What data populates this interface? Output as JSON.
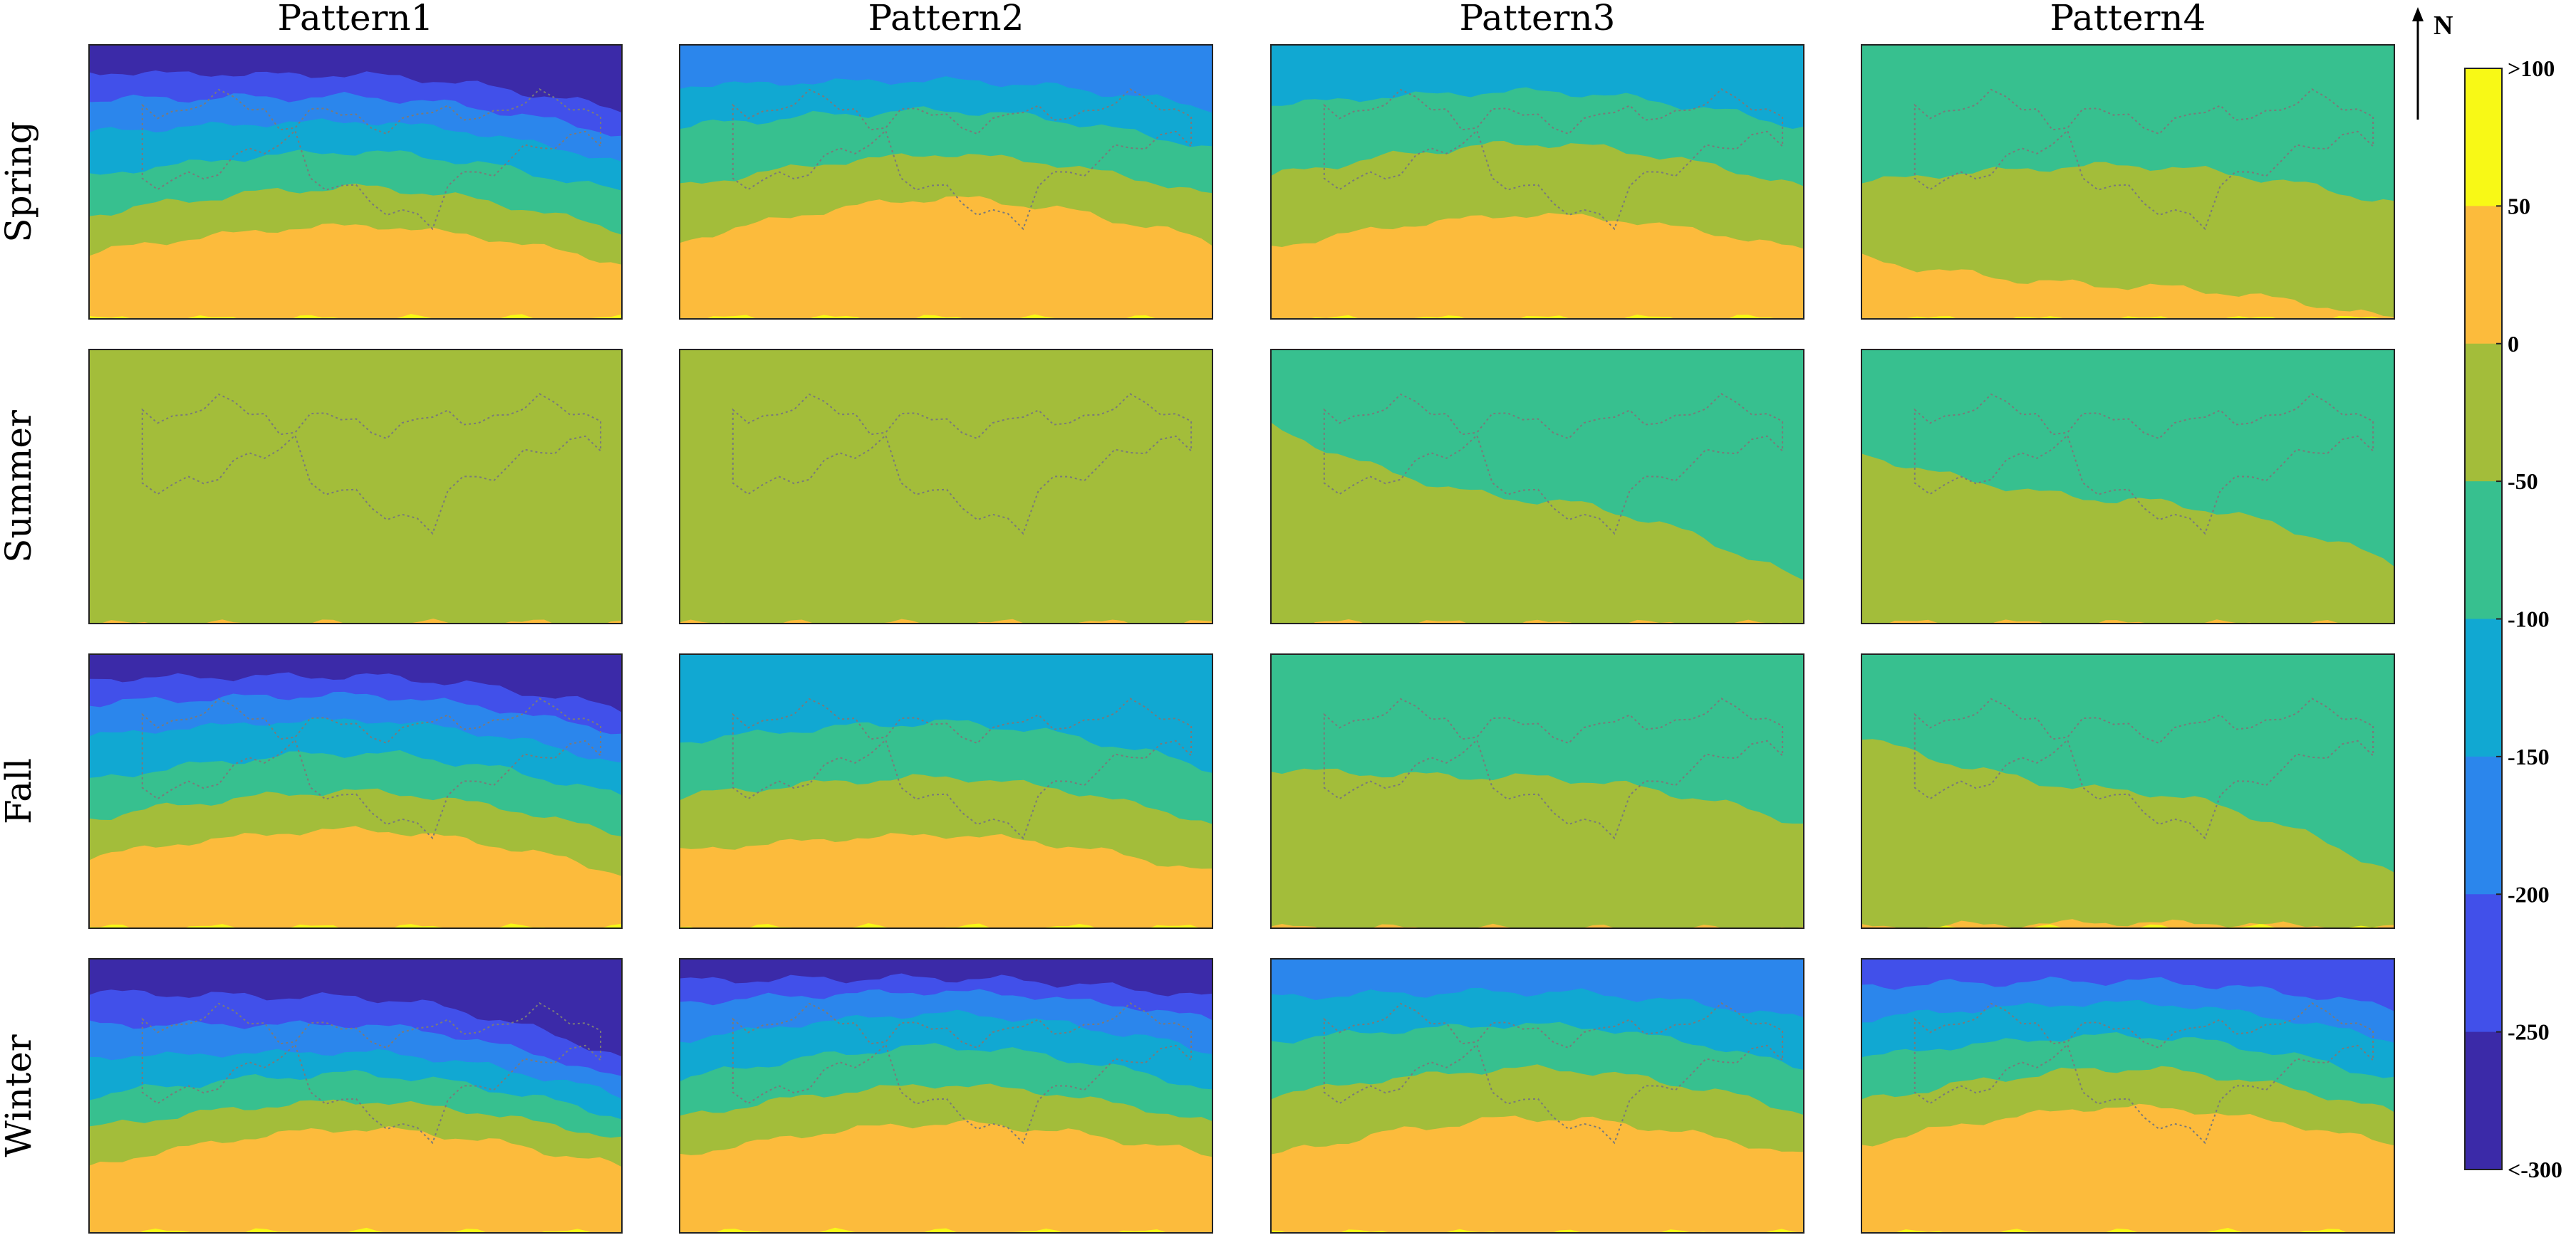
{
  "chart_data": {
    "type": "heatmap",
    "columns": [
      "Pattern1",
      "Pattern2",
      "Pattern3",
      "Pattern4"
    ],
    "rows": [
      "Spring",
      "Summer",
      "Fall",
      "Winter"
    ],
    "colorbar": {
      "levels": [
        ">100",
        "50",
        "0",
        "-50",
        "-100",
        "-150",
        "-200",
        "-250",
        "<-300"
      ],
      "colors": [
        "#f8f916",
        "#fcbb3c",
        "#a3bd3a",
        "#37c08f",
        "#11a8d2",
        "#2b86ec",
        "#4150ea",
        "#3b2aa8"
      ]
    },
    "north_label": "N",
    "panels": [
      [
        {
          "bands": [
            [
              -300,
              -250
            ],
            [
              -250,
              -200
            ],
            [
              -200,
              -150
            ],
            [
              -150,
              -100
            ],
            [
              -100,
              -50
            ],
            [
              -50,
              0
            ],
            [
              0,
              50
            ],
            [
              50,
              100
            ]
          ],
          "stops": [
            [
              0,
              0.03,
              0.16
            ],
            [
              0.1,
              0.11,
              0.24
            ],
            [
              0.2,
              0.19,
              0.33
            ],
            [
              0.32,
              0.28,
              0.43
            ],
            [
              0.48,
              0.39,
              0.54
            ],
            [
              0.62,
              0.52,
              0.68
            ],
            [
              0.76,
              0.66,
              0.8
            ],
            [
              1,
              1,
              1
            ]
          ]
        },
        {
          "bands": [
            [
              -200,
              -150
            ],
            [
              -150,
              -100
            ],
            [
              -100,
              -50
            ],
            [
              -50,
              0
            ],
            [
              0,
              50
            ],
            [
              50,
              100
            ]
          ],
          "stops": [
            [
              0,
              0.04,
              0.12
            ],
            [
              0.15,
              0.13,
              0.23
            ],
            [
              0.3,
              0.24,
              0.38
            ],
            [
              0.52,
              0.4,
              0.55
            ],
            [
              0.72,
              0.56,
              0.72
            ],
            [
              1,
              1,
              1
            ]
          ]
        },
        {
          "bands": [
            [
              -150,
              -100
            ],
            [
              -100,
              -50
            ],
            [
              -50,
              0
            ],
            [
              0,
              50
            ],
            [
              50,
              100
            ]
          ],
          "stops": [
            [
              0,
              0.03,
              0.12
            ],
            [
              0.22,
              0.17,
              0.3
            ],
            [
              0.48,
              0.36,
              0.52
            ],
            [
              0.74,
              0.62,
              0.75
            ],
            [
              1,
              1,
              1
            ]
          ]
        },
        {
          "bands": [
            [
              -100,
              -50
            ],
            [
              -50,
              0
            ],
            [
              0,
              50
            ],
            [
              50,
              100
            ]
          ],
          "stops": [
            [
              0,
              0.24,
              0.36
            ],
            [
              0.5,
              0.44,
              0.58
            ],
            [
              0.78,
              0.88,
              1.0
            ],
            [
              1,
              1,
              1
            ]
          ]
        }
      ],
      [
        {
          "bands": [
            [
              -50,
              0
            ],
            [
              0,
              50
            ]
          ],
          "stops": [
            [
              0,
              0.22,
              0.9
            ],
            [
              1,
              1,
              1
            ]
          ]
        },
        {
          "bands": [
            [
              -50,
              0
            ],
            [
              0,
              50
            ]
          ],
          "stops": [
            [
              0,
              0.35,
              0.92
            ],
            [
              1,
              1,
              1
            ]
          ]
        },
        {
          "bands": [
            [
              -100,
              -50
            ],
            [
              -50,
              0
            ],
            [
              0,
              50
            ]
          ],
          "stops": [
            [
              0,
              0.02,
              0.18
            ],
            [
              0.28,
              0.55,
              0.85
            ],
            [
              1,
              1,
              1
            ]
          ]
        },
        {
          "bands": [
            [
              -100,
              -50
            ],
            [
              -50,
              0
            ],
            [
              0,
              50
            ]
          ],
          "stops": [
            [
              0,
              0.12,
              0.24
            ],
            [
              0.38,
              0.55,
              0.78
            ],
            [
              1,
              1,
              1
            ]
          ]
        }
      ],
      [
        {
          "bands": [
            [
              -300,
              -250
            ],
            [
              -250,
              -200
            ],
            [
              -200,
              -150
            ],
            [
              -150,
              -100
            ],
            [
              -100,
              -50
            ],
            [
              -50,
              0
            ],
            [
              0,
              50
            ],
            [
              50,
              100
            ]
          ],
          "stops": [
            [
              0,
              0.02,
              0.1
            ],
            [
              0.09,
              0.08,
              0.2
            ],
            [
              0.18,
              0.15,
              0.29
            ],
            [
              0.3,
              0.24,
              0.4
            ],
            [
              0.46,
              0.36,
              0.52
            ],
            [
              0.6,
              0.5,
              0.66
            ],
            [
              0.74,
              0.64,
              0.8
            ],
            [
              1,
              1,
              1
            ]
          ]
        },
        {
          "bands": [
            [
              -150,
              -100
            ],
            [
              -100,
              -50
            ],
            [
              -50,
              0
            ],
            [
              0,
              50
            ],
            [
              50,
              100
            ]
          ],
          "stops": [
            [
              0,
              0.08,
              0.22
            ],
            [
              0.32,
              0.25,
              0.42
            ],
            [
              0.52,
              0.45,
              0.62
            ],
            [
              0.72,
              0.66,
              0.8
            ],
            [
              1,
              1,
              1
            ]
          ]
        },
        {
          "bands": [
            [
              -100,
              -50
            ],
            [
              -50,
              0
            ],
            [
              0,
              50
            ]
          ],
          "stops": [
            [
              0,
              0.2,
              0.38
            ],
            [
              0.42,
              0.45,
              0.62
            ],
            [
              1,
              1,
              1
            ]
          ]
        },
        {
          "bands": [
            [
              -100,
              -50
            ],
            [
              -50,
              0
            ],
            [
              0,
              50
            ],
            [
              50,
              100
            ]
          ],
          "stops": [
            [
              0,
              0.05,
              0.1
            ],
            [
              0.3,
              0.5,
              0.8
            ],
            [
              1,
              0.98,
              1
            ],
            [
              1,
              1,
              1
            ]
          ]
        }
      ],
      [
        {
          "bands": [
            [
              -300,
              -250
            ],
            [
              -250,
              -200
            ],
            [
              -200,
              -150
            ],
            [
              -150,
              -100
            ],
            [
              -100,
              -50
            ],
            [
              -50,
              0
            ],
            [
              0,
              50
            ],
            [
              50,
              100
            ]
          ],
          "stops": [
            [
              0,
              0.0,
              0.28
            ],
            [
              0.12,
              0.14,
              0.36
            ],
            [
              0.24,
              0.24,
              0.44
            ],
            [
              0.36,
              0.34,
              0.5
            ],
            [
              0.5,
              0.42,
              0.58
            ],
            [
              0.62,
              0.52,
              0.66
            ],
            [
              0.76,
              0.62,
              0.76
            ],
            [
              1,
              1,
              1
            ]
          ]
        },
        {
          "bands": [
            [
              -300,
              -250
            ],
            [
              -250,
              -200
            ],
            [
              -200,
              -150
            ],
            [
              -150,
              -100
            ],
            [
              -100,
              -50
            ],
            [
              -50,
              0
            ],
            [
              0,
              50
            ],
            [
              50,
              100
            ]
          ],
          "stops": [
            [
              0,
              0.01,
              0.06
            ],
            [
              0.08,
              0.07,
              0.14
            ],
            [
              0.16,
              0.12,
              0.22
            ],
            [
              0.3,
              0.2,
              0.34
            ],
            [
              0.44,
              0.32,
              0.48
            ],
            [
              0.58,
              0.46,
              0.6
            ],
            [
              0.72,
              0.6,
              0.72
            ],
            [
              1,
              1,
              1
            ]
          ]
        },
        {
          "bands": [
            [
              -200,
              -150
            ],
            [
              -150,
              -100
            ],
            [
              -100,
              -50
            ],
            [
              -50,
              0
            ],
            [
              0,
              50
            ],
            [
              50,
              100
            ]
          ],
          "stops": [
            [
              0,
              0.04,
              0.1
            ],
            [
              0.14,
              0.12,
              0.22
            ],
            [
              0.3,
              0.24,
              0.4
            ],
            [
              0.5,
              0.4,
              0.56
            ],
            [
              0.72,
              0.58,
              0.72
            ],
            [
              1,
              1,
              1
            ]
          ]
        },
        {
          "bands": [
            [
              -250,
              -200
            ],
            [
              -200,
              -150
            ],
            [
              -150,
              -100
            ],
            [
              -100,
              -50
            ],
            [
              -50,
              0
            ],
            [
              0,
              50
            ],
            [
              50,
              100
            ]
          ],
          "stops": [
            [
              0,
              0.02,
              0.08
            ],
            [
              0.1,
              0.08,
              0.18
            ],
            [
              0.22,
              0.16,
              0.3
            ],
            [
              0.36,
              0.28,
              0.44
            ],
            [
              0.52,
              0.4,
              0.56
            ],
            [
              0.68,
              0.54,
              0.68
            ],
            [
              1,
              1,
              1
            ]
          ]
        }
      ]
    ]
  }
}
